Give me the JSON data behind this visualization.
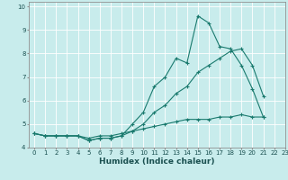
{
  "title": "",
  "xlabel": "Humidex (Indice chaleur)",
  "background_color": "#c8ecec",
  "grid_color": "#ffffff",
  "line_color": "#1a7a6e",
  "xlim": [
    -0.5,
    23
  ],
  "ylim": [
    4,
    10.2
  ],
  "x": [
    0,
    1,
    2,
    3,
    4,
    5,
    6,
    7,
    8,
    9,
    10,
    11,
    12,
    13,
    14,
    15,
    16,
    17,
    18,
    19,
    20,
    21,
    22,
    23
  ],
  "line1": [
    4.6,
    4.5,
    4.5,
    4.5,
    4.5,
    4.3,
    4.4,
    4.4,
    4.5,
    5.0,
    5.5,
    6.6,
    7.0,
    7.8,
    7.6,
    9.6,
    9.3,
    8.3,
    8.2,
    7.5,
    6.5,
    5.3,
    null,
    null
  ],
  "line2": [
    4.6,
    4.5,
    4.5,
    4.5,
    4.5,
    4.3,
    4.4,
    4.4,
    4.5,
    4.7,
    5.0,
    5.5,
    5.8,
    6.3,
    6.6,
    7.2,
    7.5,
    7.8,
    8.1,
    8.2,
    7.5,
    6.2,
    null,
    null
  ],
  "line3": [
    4.6,
    4.5,
    4.5,
    4.5,
    4.5,
    4.4,
    4.5,
    4.5,
    4.6,
    4.7,
    4.8,
    4.9,
    5.0,
    5.1,
    5.2,
    5.2,
    5.2,
    5.3,
    5.3,
    5.4,
    5.3,
    5.3,
    null,
    null
  ],
  "yticks": [
    4,
    5,
    6,
    7,
    8,
    9,
    10
  ],
  "xticks": [
    0,
    1,
    2,
    3,
    4,
    5,
    6,
    7,
    8,
    9,
    10,
    11,
    12,
    13,
    14,
    15,
    16,
    17,
    18,
    19,
    20,
    21,
    22,
    23
  ],
  "tick_fontsize": 5,
  "xlabel_fontsize": 6.5,
  "label_color": "#1a5050"
}
